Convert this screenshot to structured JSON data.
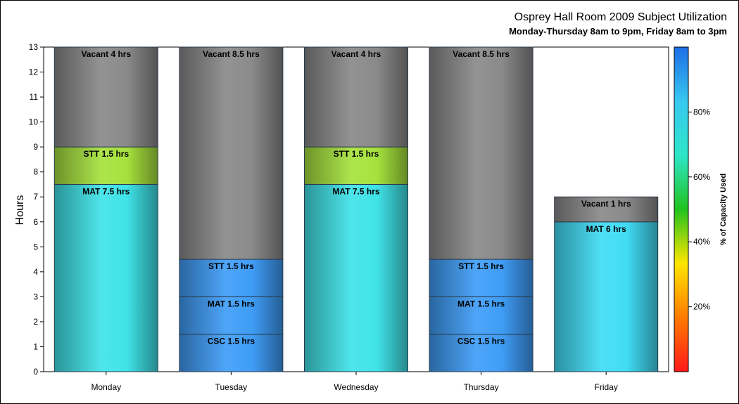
{
  "chart_data": {
    "type": "bar",
    "stacked": true,
    "title": "Osprey Hall Room 2009 Subject Utilization",
    "subtitle": "Monday-Thursday 8am to 9pm, Friday 8am to 3pm",
    "ylabel": "Hours",
    "ylim": [
      0,
      13
    ],
    "yticks": [
      "0",
      "1",
      "2",
      "3",
      "4",
      "5",
      "6",
      "7",
      "8",
      "9",
      "10",
      "11",
      "12",
      "13"
    ],
    "categories": [
      "Monday",
      "Tuesday",
      "Wednesday",
      "Thursday",
      "Friday"
    ],
    "bars": [
      {
        "category": "Monday",
        "total": 13,
        "segments": [
          {
            "label": "MAT 7.5 hrs",
            "subject": "MAT",
            "hours": 7.5,
            "color": "#3fe3e8"
          },
          {
            "label": "STT 1.5 hrs",
            "subject": "STT",
            "hours": 1.5,
            "color": "#a6e23d"
          },
          {
            "label": "Vacant 4 hrs",
            "subject": "Vacant",
            "hours": 4,
            "color": "#8a8a8a"
          }
        ]
      },
      {
        "category": "Tuesday",
        "total": 13,
        "segments": [
          {
            "label": "CSC 1.5 hrs",
            "subject": "CSC",
            "hours": 1.5,
            "color": "#3f9df7"
          },
          {
            "label": "MAT 1.5 hrs",
            "subject": "MAT",
            "hours": 1.5,
            "color": "#3f9df7"
          },
          {
            "label": "STT 1.5 hrs",
            "subject": "STT",
            "hours": 1.5,
            "color": "#3f9df7"
          },
          {
            "label": "Vacant 8.5 hrs",
            "subject": "Vacant",
            "hours": 8.5,
            "color": "#8a8a8a"
          }
        ]
      },
      {
        "category": "Wednesday",
        "total": 13,
        "segments": [
          {
            "label": "MAT 7.5 hrs",
            "subject": "MAT",
            "hours": 7.5,
            "color": "#3fe3e8"
          },
          {
            "label": "STT 1.5 hrs",
            "subject": "STT",
            "hours": 1.5,
            "color": "#a6e23d"
          },
          {
            "label": "Vacant 4 hrs",
            "subject": "Vacant",
            "hours": 4,
            "color": "#8a8a8a"
          }
        ]
      },
      {
        "category": "Thursday",
        "total": 13,
        "segments": [
          {
            "label": "CSC 1.5 hrs",
            "subject": "CSC",
            "hours": 1.5,
            "color": "#3f9df7"
          },
          {
            "label": "MAT 1.5 hrs",
            "subject": "MAT",
            "hours": 1.5,
            "color": "#3f9df7"
          },
          {
            "label": "STT 1.5 hrs",
            "subject": "STT",
            "hours": 1.5,
            "color": "#3f9df7"
          },
          {
            "label": "Vacant 8.5 hrs",
            "subject": "Vacant",
            "hours": 8.5,
            "color": "#8a8a8a"
          }
        ]
      },
      {
        "category": "Friday",
        "total": 7,
        "segments": [
          {
            "label": "MAT 6 hrs",
            "subject": "MAT",
            "hours": 6,
            "color": "#40dcf5"
          },
          {
            "label": "Vacant 1 hrs",
            "subject": "Vacant",
            "hours": 1,
            "color": "#8a8a8a"
          }
        ]
      }
    ],
    "colorbar": {
      "title": "% of Capacity Used",
      "ticks": [
        "20%",
        "40%",
        "60%",
        "80%"
      ],
      "tick_values": [
        20,
        40,
        60,
        80
      ],
      "range": [
        0,
        100
      ],
      "stops": [
        "#ff1a1a",
        "#ff7a00",
        "#ffe600",
        "#22c21e",
        "#2ee6c8",
        "#38c8f0",
        "#1e6ee6"
      ]
    },
    "grid": false
  }
}
